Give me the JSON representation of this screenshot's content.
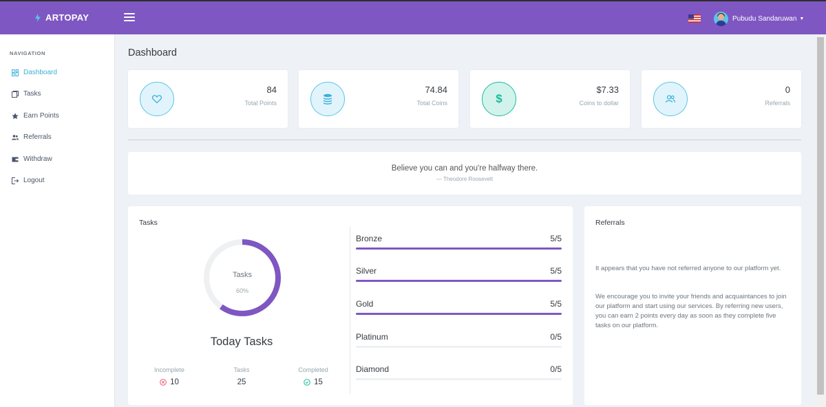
{
  "topbar": {
    "brand": "ARTOPAY",
    "user_name": "Pubudu Sandaruwan",
    "flag_icon": "us-flag-icon",
    "accent_color": "#7e57c2"
  },
  "sidebar": {
    "section_title": "NAVIGATION",
    "items": [
      {
        "label": "Dashboard",
        "icon": "dashboard-icon",
        "active": true
      },
      {
        "label": "Tasks",
        "icon": "tasks-icon"
      },
      {
        "label": "Earn Points",
        "icon": "star-icon"
      },
      {
        "label": "Referrals",
        "icon": "users-icon"
      },
      {
        "label": "Withdraw",
        "icon": "wallet-icon"
      },
      {
        "label": "Logout",
        "icon": "logout-icon"
      }
    ]
  },
  "page_title": "Dashboard",
  "stats": [
    {
      "value": "84",
      "label": "Total Points",
      "icon": "heart-icon"
    },
    {
      "value": "74.84",
      "label": "Total Coins",
      "icon": "coins-icon"
    },
    {
      "value": "$7.33",
      "label": "Coins to dollar",
      "icon": "dollar-icon"
    },
    {
      "value": "0",
      "label": "Referrals",
      "icon": "users-icon"
    }
  ],
  "quote": {
    "text": "Believe you can and you're halfway there.",
    "author": "— Theodore Roosevelt"
  },
  "tasks": {
    "title": "Tasks",
    "donut_label": "Tasks",
    "donut_percent_text": "60%",
    "donut_percent": 60,
    "today_title": "Today Tasks",
    "summary": [
      {
        "label": "Incomplete",
        "value": "10",
        "icon": "x-circle-icon"
      },
      {
        "label": "Tasks",
        "value": "25"
      },
      {
        "label": "Completed",
        "value": "15",
        "icon": "check-circle-icon"
      }
    ],
    "tiers": [
      {
        "name": "Bronze",
        "value": "5/5",
        "progress": 1.0
      },
      {
        "name": "Silver",
        "value": "5/5",
        "progress": 1.0
      },
      {
        "name": "Gold",
        "value": "5/5",
        "progress": 1.0
      },
      {
        "name": "Platinum",
        "value": "0/5",
        "progress": 0.0
      },
      {
        "name": "Diamond",
        "value": "0/5",
        "progress": 0.0
      }
    ]
  },
  "referrals": {
    "title": "Referrals",
    "paragraph1": "It appears that you have not referred anyone to our platform yet.",
    "paragraph2": "We encourage you to invite your friends and acquaintances to join our platform and start using our services. By referring new users, you can earn 2 points every day as soon as they complete five tasks on our platform."
  }
}
